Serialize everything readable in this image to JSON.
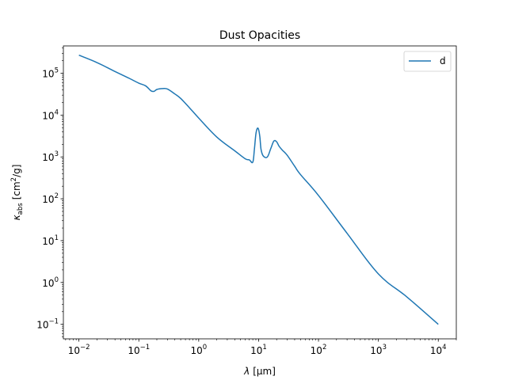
{
  "chart_data": {
    "type": "line",
    "title": "Dust Opacities",
    "xlabel_symbol": "λ",
    "xlabel_unit": "[μm]",
    "ylabel_symbol": "κ",
    "ylabel_sub": "abs",
    "ylabel_unit_pre": "[cm",
    "ylabel_unit_sup": "2",
    "ylabel_unit_post": "/g]",
    "xscale": "log",
    "yscale": "log",
    "xlim": [
      0.0055,
      20000
    ],
    "ylim": [
      0.045,
      450000
    ],
    "grid": false,
    "legend_position": "top-right",
    "x_ticks": [
      {
        "base": "10",
        "exp": "−2",
        "value": 0.01
      },
      {
        "base": "10",
        "exp": "−1",
        "value": 0.1
      },
      {
        "base": "10",
        "exp": "0",
        "value": 1
      },
      {
        "base": "10",
        "exp": "1",
        "value": 10
      },
      {
        "base": "10",
        "exp": "2",
        "value": 100
      },
      {
        "base": "10",
        "exp": "3",
        "value": 1000
      },
      {
        "base": "10",
        "exp": "4",
        "value": 10000
      }
    ],
    "y_ticks": [
      {
        "base": "10",
        "exp": "−1",
        "value": 0.1
      },
      {
        "base": "10",
        "exp": "0",
        "value": 1
      },
      {
        "base": "10",
        "exp": "1",
        "value": 10
      },
      {
        "base": "10",
        "exp": "2",
        "value": 100
      },
      {
        "base": "10",
        "exp": "3",
        "value": 1000
      },
      {
        "base": "10",
        "exp": "4",
        "value": 10000
      },
      {
        "base": "10",
        "exp": "5",
        "value": 100000
      }
    ],
    "series": [
      {
        "name": "d",
        "color": "#1f77b4",
        "x": [
          0.01,
          0.02,
          0.04,
          0.07,
          0.1,
          0.13,
          0.16,
          0.18,
          0.2,
          0.25,
          0.3,
          0.4,
          0.5,
          0.7,
          1.0,
          2.0,
          4.0,
          6.0,
          7.0,
          8.0,
          8.5,
          9.0,
          9.5,
          10.0,
          10.5,
          11.0,
          12.0,
          14.0,
          16.0,
          18.0,
          20.0,
          22.0,
          25.0,
          30.0,
          40.0,
          50.0,
          100.0,
          300.0,
          1000.0,
          3000.0,
          10000.0
        ],
        "y": [
          270000,
          180000,
          110000,
          75000,
          58000,
          50000,
          38000,
          37000,
          41000,
          43000,
          42000,
          32000,
          25000,
          15000,
          8500,
          3000,
          1400,
          900,
          850,
          750,
          1500,
          3500,
          4800,
          4500,
          3000,
          1500,
          1050,
          1000,
          1600,
          2400,
          2300,
          1800,
          1450,
          1100,
          600,
          380,
          120,
          15,
          1.6,
          0.45,
          0.1
        ]
      }
    ]
  }
}
